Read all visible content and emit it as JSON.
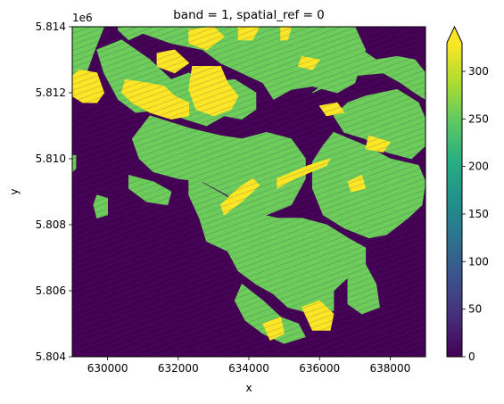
{
  "chart_data": {
    "type": "heatmap",
    "title": "band = 1, spatial_ref = 0",
    "xlabel": "x",
    "ylabel": "y",
    "xlim": [
      629000,
      639000
    ],
    "ylim": [
      5804000,
      5814000
    ],
    "x_ticks": [
      630000,
      632000,
      634000,
      636000,
      638000
    ],
    "x_tick_labels": [
      "630000",
      "632000",
      "634000",
      "636000",
      "638000"
    ],
    "y_ticks": [
      5804000,
      5806000,
      5808000,
      5810000,
      5812000,
      5814000
    ],
    "y_tick_labels": [
      "5.804",
      "5.806",
      "5.808",
      "5.810",
      "5.812",
      "5.814"
    ],
    "y_offset_label": "1e6",
    "colorbar": {
      "colormap": "viridis",
      "range": [
        0,
        330
      ],
      "extend": "max",
      "ticks": [
        0,
        50,
        100,
        150,
        200,
        250,
        300
      ],
      "tick_labels": [
        "0",
        "50",
        "100",
        "150",
        "200",
        "250",
        "300"
      ]
    },
    "value_classes": [
      {
        "value": 0,
        "color": "#440154",
        "description_visible": false
      },
      {
        "value": 255,
        "color": "#6ccd5a",
        "description_visible": false
      },
      {
        "value": 330,
        "color": "#fde725",
        "description_visible": false
      }
    ],
    "regions": {
      "green": [
        [
          [
            634000,
            5814000
          ],
          [
            637000,
            5814000
          ],
          [
            637300,
            5813300
          ],
          [
            637000,
            5812300
          ],
          [
            636500,
            5812000
          ],
          [
            635800,
            5812200
          ],
          [
            635200,
            5812100
          ],
          [
            634700,
            5811800
          ],
          [
            634400,
            5812300
          ],
          [
            633800,
            5812600
          ],
          [
            633200,
            5812900
          ],
          [
            632700,
            5813300
          ],
          [
            631800,
            5813500
          ],
          [
            631000,
            5813800
          ],
          [
            630600,
            5813600
          ],
          [
            630300,
            5813900
          ],
          [
            630300,
            5814000
          ]
        ],
        [
          [
            630400,
            5813600
          ],
          [
            631200,
            5813000
          ],
          [
            631800,
            5812400
          ],
          [
            632300,
            5812600
          ],
          [
            632800,
            5812300
          ],
          [
            633600,
            5812400
          ],
          [
            634200,
            5812000
          ],
          [
            634200,
            5811500
          ],
          [
            633800,
            5811200
          ],
          [
            633300,
            5811300
          ],
          [
            632800,
            5811000
          ],
          [
            632200,
            5811200
          ],
          [
            631500,
            5811500
          ],
          [
            630800,
            5811400
          ],
          [
            630300,
            5811800
          ],
          [
            629900,
            5812600
          ],
          [
            629700,
            5813300
          ]
        ],
        [
          [
            629000,
            5814000
          ],
          [
            629900,
            5814000
          ],
          [
            629600,
            5813200
          ],
          [
            629300,
            5812300
          ],
          [
            629000,
            5812000
          ]
        ],
        [
          [
            635800,
            5812000
          ],
          [
            636800,
            5812500
          ],
          [
            637800,
            5812600
          ],
          [
            638300,
            5812300
          ],
          [
            638700,
            5812000
          ],
          [
            639000,
            5811800
          ],
          [
            639000,
            5812600
          ],
          [
            638700,
            5813000
          ],
          [
            638200,
            5813100
          ],
          [
            637600,
            5813000
          ],
          [
            637200,
            5813300
          ],
          [
            636800,
            5812800
          ]
        ],
        [
          [
            637300,
            5811900
          ],
          [
            638200,
            5812100
          ],
          [
            638800,
            5811700
          ],
          [
            639000,
            5811200
          ],
          [
            639000,
            5810400
          ],
          [
            638600,
            5810000
          ],
          [
            637900,
            5810200
          ],
          [
            637300,
            5810600
          ],
          [
            636700,
            5810800
          ],
          [
            636400,
            5811300
          ],
          [
            636800,
            5811700
          ]
        ],
        [
          [
            636400,
            5810800
          ],
          [
            637300,
            5810400
          ],
          [
            638000,
            5810000
          ],
          [
            638800,
            5809800
          ],
          [
            639000,
            5809300
          ],
          [
            638900,
            5808600
          ],
          [
            638500,
            5808200
          ],
          [
            637900,
            5807700
          ],
          [
            637400,
            5807600
          ],
          [
            636700,
            5807900
          ],
          [
            636100,
            5808300
          ],
          [
            635800,
            5809100
          ],
          [
            635800,
            5809900
          ],
          [
            636100,
            5810400
          ]
        ],
        [
          [
            631200,
            5811300
          ],
          [
            632400,
            5810900
          ],
          [
            633200,
            5810700
          ],
          [
            633800,
            5810600
          ],
          [
            634500,
            5810800
          ],
          [
            635200,
            5810600
          ],
          [
            635600,
            5810000
          ],
          [
            635600,
            5809400
          ],
          [
            635200,
            5808600
          ],
          [
            634500,
            5808300
          ],
          [
            633800,
            5808300
          ],
          [
            633400,
            5808900
          ],
          [
            632700,
            5809300
          ],
          [
            632000,
            5809400
          ],
          [
            631300,
            5809600
          ],
          [
            630900,
            5810000
          ],
          [
            630700,
            5810600
          ]
        ],
        [
          [
            632300,
            5809500
          ],
          [
            633300,
            5808900
          ],
          [
            634000,
            5808400
          ],
          [
            634800,
            5808200
          ],
          [
            635500,
            5808200
          ],
          [
            636200,
            5808000
          ],
          [
            636800,
            5807600
          ],
          [
            637300,
            5807300
          ],
          [
            637300,
            5806800
          ],
          [
            636800,
            5806400
          ],
          [
            636400,
            5806000
          ],
          [
            636400,
            5805400
          ],
          [
            635800,
            5805300
          ],
          [
            635100,
            5805500
          ],
          [
            634700,
            5805900
          ],
          [
            634200,
            5806200
          ],
          [
            633700,
            5806600
          ],
          [
            633400,
            5807200
          ],
          [
            632800,
            5807500
          ],
          [
            632600,
            5808200
          ],
          [
            632300,
            5808900
          ]
        ],
        [
          [
            636800,
            5806500
          ],
          [
            637300,
            5806800
          ],
          [
            637600,
            5806200
          ],
          [
            637700,
            5805500
          ],
          [
            637200,
            5805300
          ],
          [
            636800,
            5805600
          ]
        ],
        [
          [
            633800,
            5806200
          ],
          [
            634400,
            5805700
          ],
          [
            634900,
            5805200
          ],
          [
            635400,
            5805000
          ],
          [
            635600,
            5804600
          ],
          [
            635000,
            5804400
          ],
          [
            634400,
            5804700
          ],
          [
            633900,
            5805100
          ],
          [
            633600,
            5805700
          ]
        ],
        [
          [
            629000,
            5810100
          ],
          [
            629100,
            5810100
          ],
          [
            629100,
            5809700
          ],
          [
            629000,
            5809600
          ]
        ],
        [
          [
            629700,
            5808900
          ],
          [
            630000,
            5808800
          ],
          [
            630000,
            5808300
          ],
          [
            629700,
            5808200
          ],
          [
            629600,
            5808600
          ]
        ],
        [
          [
            630600,
            5809500
          ],
          [
            631300,
            5809300
          ],
          [
            631800,
            5809000
          ],
          [
            631700,
            5808600
          ],
          [
            631100,
            5808700
          ],
          [
            630600,
            5809100
          ]
        ]
      ],
      "yellow": [
        [
          [
            629200,
            5812700
          ],
          [
            629700,
            5812600
          ],
          [
            629900,
            5812000
          ],
          [
            629700,
            5811700
          ],
          [
            629300,
            5811700
          ],
          [
            629000,
            5811900
          ],
          [
            629000,
            5812500
          ]
        ],
        [
          [
            630500,
            5812400
          ],
          [
            631100,
            5812300
          ],
          [
            631600,
            5812200
          ],
          [
            631900,
            5811900
          ],
          [
            632300,
            5811700
          ],
          [
            632300,
            5811300
          ],
          [
            631800,
            5811200
          ],
          [
            631200,
            5811400
          ],
          [
            630700,
            5811700
          ],
          [
            630400,
            5812000
          ]
        ],
        [
          [
            632400,
            5812800
          ],
          [
            633200,
            5812800
          ],
          [
            633400,
            5812300
          ],
          [
            633700,
            5811900
          ],
          [
            633500,
            5811500
          ],
          [
            633000,
            5811300
          ],
          [
            632500,
            5811500
          ],
          [
            632300,
            5812100
          ]
        ],
        [
          [
            632300,
            5813900
          ],
          [
            633000,
            5814000
          ],
          [
            633300,
            5813700
          ],
          [
            632800,
            5813300
          ],
          [
            632300,
            5813500
          ]
        ],
        [
          [
            631400,
            5813200
          ],
          [
            631900,
            5813300
          ],
          [
            632300,
            5812900
          ],
          [
            631900,
            5812600
          ],
          [
            631400,
            5812800
          ]
        ],
        [
          [
            633700,
            5814000
          ],
          [
            634300,
            5814000
          ],
          [
            634100,
            5813600
          ],
          [
            633700,
            5813600
          ]
        ],
        [
          [
            634900,
            5814000
          ],
          [
            635200,
            5814000
          ],
          [
            635100,
            5813600
          ],
          [
            634900,
            5813600
          ]
        ],
        [
          [
            635500,
            5813100
          ],
          [
            636000,
            5813000
          ],
          [
            635800,
            5812700
          ],
          [
            635400,
            5812800
          ]
        ],
        [
          [
            636000,
            5811600
          ],
          [
            636500,
            5811700
          ],
          [
            636700,
            5811400
          ],
          [
            636200,
            5811300
          ]
        ],
        [
          [
            637400,
            5810700
          ],
          [
            638000,
            5810500
          ],
          [
            637800,
            5810200
          ],
          [
            637300,
            5810300
          ]
        ],
        [
          [
            634800,
            5809400
          ],
          [
            635700,
            5809800
          ],
          [
            636300,
            5810000
          ],
          [
            636200,
            5809800
          ],
          [
            635300,
            5809400
          ],
          [
            634800,
            5809100
          ]
        ],
        [
          [
            633200,
            5808600
          ],
          [
            633700,
            5809100
          ],
          [
            634100,
            5809400
          ],
          [
            634300,
            5809200
          ],
          [
            633800,
            5808700
          ],
          [
            633300,
            5808300
          ]
        ],
        [
          [
            635500,
            5805500
          ],
          [
            636000,
            5805700
          ],
          [
            636400,
            5805300
          ],
          [
            636300,
            5804800
          ],
          [
            635800,
            5804800
          ]
        ],
        [
          [
            634400,
            5805000
          ],
          [
            634900,
            5805200
          ],
          [
            635000,
            5804700
          ],
          [
            634600,
            5804500
          ]
        ],
        [
          [
            636800,
            5809300
          ],
          [
            637200,
            5809500
          ],
          [
            637300,
            5809100
          ],
          [
            636900,
            5809000
          ]
        ]
      ]
    }
  }
}
